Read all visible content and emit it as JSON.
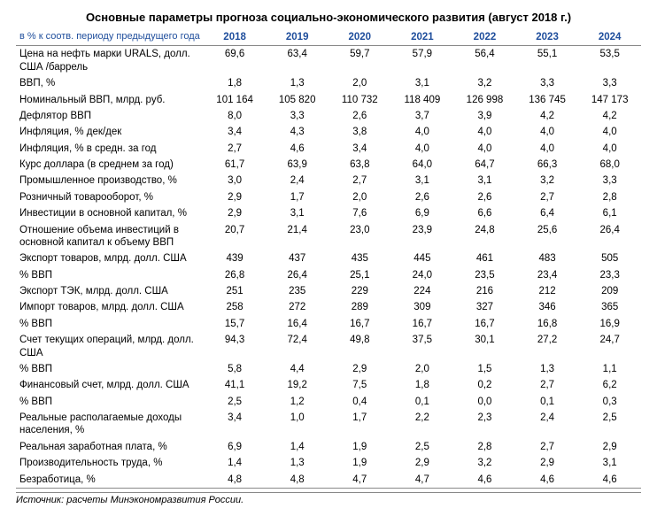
{
  "title": "Основные параметры прогноза социально-экономического развития (август 2018 г.)",
  "header_label": "в % к соотв. периоду предыдущего года",
  "years": [
    "2018",
    "2019",
    "2020",
    "2021",
    "2022",
    "2023",
    "2024"
  ],
  "source": "Источник: расчеты Минэкономразвития России.",
  "colors": {
    "header_text": "#1f4e9c",
    "border": "#888888",
    "text": "#000000",
    "background": "#ffffff"
  },
  "font_size_body": 11.5,
  "font_size_title": 13,
  "rows": [
    {
      "label": "Цена на нефть марки URALS, долл. США /баррель",
      "v": [
        "69,6",
        "63,4",
        "59,7",
        "57,9",
        "56,4",
        "55,1",
        "53,5"
      ]
    },
    {
      "label": "ВВП, %",
      "v": [
        "1,8",
        "1,3",
        "2,0",
        "3,1",
        "3,2",
        "3,3",
        "3,3"
      ]
    },
    {
      "label": "Номинальный ВВП, млрд. руб.",
      "v": [
        "101 164",
        "105 820",
        "110 732",
        "118 409",
        "126 998",
        "136 745",
        "147 173"
      ]
    },
    {
      "label": "Дефлятор ВВП",
      "v": [
        "8,0",
        "3,3",
        "2,6",
        "3,7",
        "3,9",
        "4,2",
        "4,2"
      ]
    },
    {
      "label": "Инфляция, % дек/дек",
      "v": [
        "3,4",
        "4,3",
        "3,8",
        "4,0",
        "4,0",
        "4,0",
        "4,0"
      ]
    },
    {
      "label": "Инфляция, % в средн. за год",
      "v": [
        "2,7",
        "4,6",
        "3,4",
        "4,0",
        "4,0",
        "4,0",
        "4,0"
      ]
    },
    {
      "label": "Курс доллара (в среднем за год)",
      "v": [
        "61,7",
        "63,9",
        "63,8",
        "64,0",
        "64,7",
        "66,3",
        "68,0"
      ]
    },
    {
      "label": "Промышленное производство, %",
      "v": [
        "3,0",
        "2,4",
        "2,7",
        "3,1",
        "3,1",
        "3,2",
        "3,3"
      ]
    },
    {
      "label": "Розничный товарооборот, %",
      "v": [
        "2,9",
        "1,7",
        "2,0",
        "2,6",
        "2,6",
        "2,7",
        "2,8"
      ]
    },
    {
      "label": "Инвестиции в основной капитал, %",
      "v": [
        "2,9",
        "3,1",
        "7,6",
        "6,9",
        "6,6",
        "6,4",
        "6,1"
      ]
    },
    {
      "label": "Отношение объема инвестиций в основной капитал к объему ВВП",
      "v": [
        "20,7",
        "21,4",
        "23,0",
        "23,9",
        "24,8",
        "25,6",
        "26,4"
      ]
    },
    {
      "label": "Экспорт товаров, млрд. долл. США",
      "v": [
        "439",
        "437",
        "435",
        "445",
        "461",
        "483",
        "505"
      ]
    },
    {
      "label": "    % ВВП",
      "v": [
        "26,8",
        "26,4",
        "25,1",
        "24,0",
        "23,5",
        "23,4",
        "23,3"
      ]
    },
    {
      "label": "Экспорт ТЭК, млрд. долл. США",
      "v": [
        "251",
        "235",
        "229",
        "224",
        "216",
        "212",
        "209"
      ]
    },
    {
      "label": "Импорт товаров, млрд. долл. США",
      "v": [
        "258",
        "272",
        "289",
        "309",
        "327",
        "346",
        "365"
      ]
    },
    {
      "label": "    % ВВП",
      "v": [
        "15,7",
        "16,4",
        "16,7",
        "16,7",
        "16,7",
        "16,8",
        "16,9"
      ]
    },
    {
      "label": "Счет текущих операций, млрд. долл. США",
      "v": [
        "94,3",
        "72,4",
        "49,8",
        "37,5",
        "30,1",
        "27,2",
        "24,7"
      ]
    },
    {
      "label": "    % ВВП",
      "v": [
        "5,8",
        "4,4",
        "2,9",
        "2,0",
        "1,5",
        "1,3",
        "1,1"
      ]
    },
    {
      "label": "Финансовый счет, млрд. долл. США",
      "v": [
        "41,1",
        "19,2",
        "7,5",
        "1,8",
        "0,2",
        "2,7",
        "6,2"
      ]
    },
    {
      "label": "    % ВВП",
      "v": [
        "2,5",
        "1,2",
        "0,4",
        "0,1",
        "0,0",
        "0,1",
        "0,3"
      ]
    },
    {
      "label": "Реальные располагаемые доходы населения, %",
      "v": [
        "3,4",
        "1,0",
        "1,7",
        "2,2",
        "2,3",
        "2,4",
        "2,5"
      ]
    },
    {
      "label": "Реальная заработная плата, %",
      "v": [
        "6,9",
        "1,4",
        "1,9",
        "2,5",
        "2,8",
        "2,7",
        "2,9"
      ]
    },
    {
      "label": "Производительность труда, %",
      "v": [
        "1,4",
        "1,3",
        "1,9",
        "2,9",
        "3,2",
        "2,9",
        "3,1"
      ]
    },
    {
      "label": "Безработица, %",
      "v": [
        "4,8",
        "4,8",
        "4,7",
        "4,7",
        "4,6",
        "4,6",
        "4,6"
      ]
    }
  ]
}
